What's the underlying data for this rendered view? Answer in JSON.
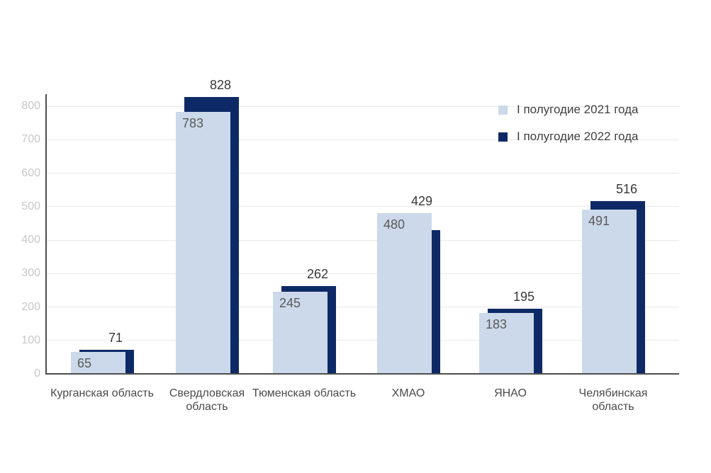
{
  "chart_data": {
    "type": "bar",
    "title": "",
    "categories": [
      "Курганская область",
      "Свердловская область",
      "Тюменская область",
      "ХМАО",
      "ЯНАО",
      "Челябинская область"
    ],
    "series": [
      {
        "name": "I полугодие 2021 года",
        "color": "#CCD9EA",
        "values": [
          65,
          783,
          245,
          480,
          183,
          491
        ]
      },
      {
        "name": "I полугодие 2022 года",
        "color": "#0E2A66",
        "values": [
          71,
          828,
          262,
          429,
          195,
          516
        ]
      }
    ],
    "y_axis": {
      "min": 0,
      "max": 800,
      "step": 100,
      "tick_labels": [
        "0",
        "100",
        "200",
        "300",
        "400",
        "500",
        "600",
        "700",
        "800"
      ]
    },
    "grid": true,
    "legend_position": "top-right",
    "bar_style": "overlapped (2022 series drawn behind, offset right; 2021 series in front)",
    "label_style": "2021 values inside bar top-left, 2022 values above bars",
    "colors": {
      "gridline": "#E9E9E9",
      "axis": "#4D4D4D",
      "y_tick_text": "#C8C8C8",
      "category_text": "#4A4A4A",
      "value_2021_text": "#595959",
      "value_2022_text": "#383838",
      "legend_text": "#404040",
      "background": "#FFFFFF"
    }
  }
}
